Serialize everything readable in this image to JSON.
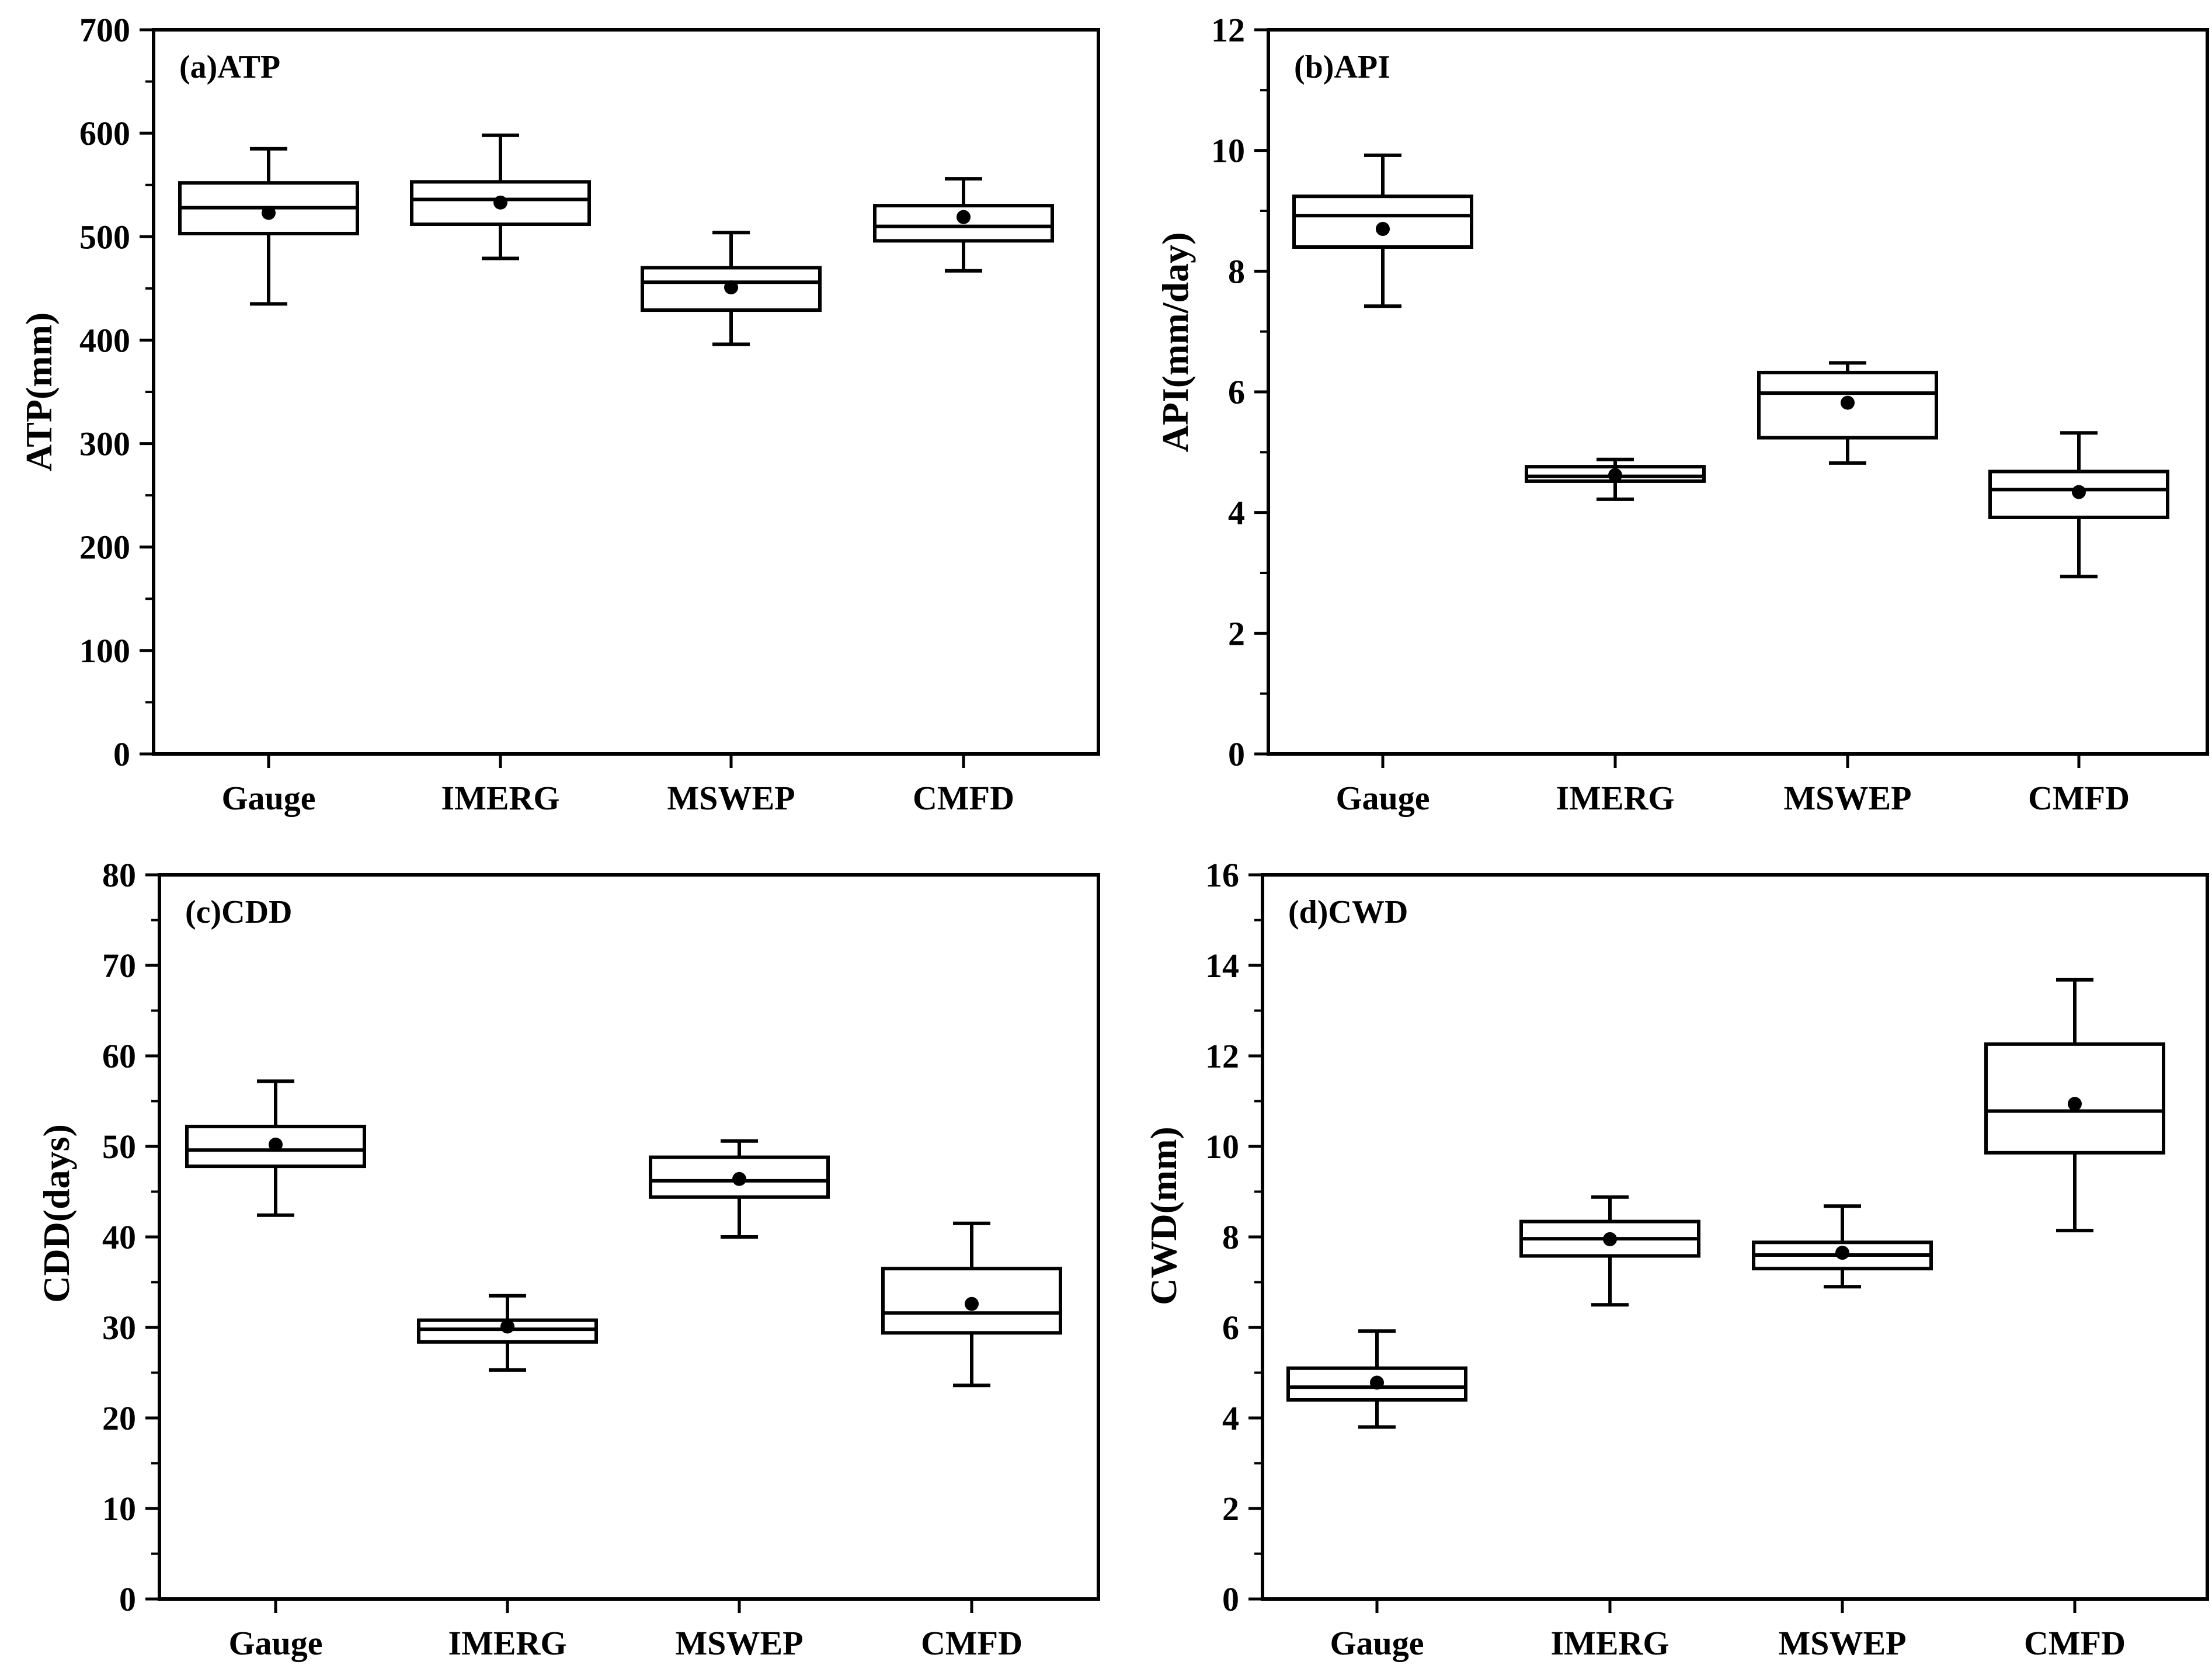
{
  "figure": {
    "categories": [
      "Gauge",
      "IMERG",
      "MSWEP",
      "CMFD"
    ]
  },
  "chart_data": [
    {
      "type": "box",
      "panel": "(a)ATP",
      "ylabel": "ATP(mm)",
      "ylim": [
        0,
        700
      ],
      "yticks": [
        0,
        100,
        200,
        300,
        400,
        500,
        600,
        700
      ],
      "minor_step": 50,
      "categories": [
        "Gauge",
        "IMERG",
        "MSWEP",
        "CMFD"
      ],
      "boxes": [
        {
          "min": 435,
          "q1": 503,
          "median": 528,
          "q3": 552,
          "max": 585,
          "mean": 523
        },
        {
          "min": 479,
          "q1": 512,
          "median": 536,
          "q3": 553,
          "max": 598,
          "mean": 533
        },
        {
          "min": 396,
          "q1": 429,
          "median": 456,
          "q3": 470,
          "max": 504,
          "mean": 451
        },
        {
          "min": 467,
          "q1": 496,
          "median": 510,
          "q3": 530,
          "max": 556,
          "mean": 519
        }
      ]
    },
    {
      "type": "box",
      "panel": "(b)API",
      "ylabel": "API(mm/day)",
      "ylim": [
        0,
        12
      ],
      "yticks": [
        0,
        2,
        4,
        6,
        8,
        10,
        12
      ],
      "minor_step": 1,
      "categories": [
        "Gauge",
        "IMERG",
        "MSWEP",
        "CMFD"
      ],
      "boxes": [
        {
          "min": 7.42,
          "q1": 8.4,
          "median": 8.92,
          "q3": 9.24,
          "max": 9.92,
          "mean": 8.7
        },
        {
          "min": 4.22,
          "q1": 4.52,
          "median": 4.6,
          "q3": 4.76,
          "max": 4.88,
          "mean": 4.62
        },
        {
          "min": 4.82,
          "q1": 5.24,
          "median": 5.98,
          "q3": 6.32,
          "max": 6.48,
          "mean": 5.82
        },
        {
          "min": 2.94,
          "q1": 3.92,
          "median": 4.38,
          "q3": 4.68,
          "max": 5.32,
          "mean": 4.34
        }
      ]
    },
    {
      "type": "box",
      "panel": "(c)CDD",
      "ylabel": "CDD(days)",
      "ylim": [
        0,
        80
      ],
      "yticks": [
        0,
        10,
        20,
        30,
        40,
        50,
        60,
        70,
        80
      ],
      "minor_step": 5,
      "categories": [
        "Gauge",
        "IMERG",
        "MSWEP",
        "CMFD"
      ],
      "boxes": [
        {
          "min": 42.4,
          "q1": 47.8,
          "median": 49.6,
          "q3": 52.2,
          "max": 57.2,
          "mean": 50.2
        },
        {
          "min": 25.3,
          "q1": 28.4,
          "median": 29.8,
          "q3": 30.8,
          "max": 33.5,
          "mean": 30.1
        },
        {
          "min": 40.0,
          "q1": 44.4,
          "median": 46.2,
          "q3": 48.8,
          "max": 50.6,
          "mean": 46.4
        },
        {
          "min": 23.6,
          "q1": 29.4,
          "median": 31.6,
          "q3": 36.5,
          "max": 41.5,
          "mean": 32.6
        }
      ]
    },
    {
      "type": "box",
      "panel": "(d)CWD",
      "ylabel": "CWD(mm)",
      "ylim": [
        0,
        16
      ],
      "yticks": [
        0,
        2,
        4,
        6,
        8,
        10,
        12,
        14,
        16
      ],
      "minor_step": 1,
      "categories": [
        "Gauge",
        "IMERG",
        "MSWEP",
        "CMFD"
      ],
      "boxes": [
        {
          "min": 3.8,
          "q1": 4.4,
          "median": 4.68,
          "q3": 5.1,
          "max": 5.92,
          "mean": 4.78
        },
        {
          "min": 6.5,
          "q1": 7.58,
          "median": 7.96,
          "q3": 8.34,
          "max": 8.88,
          "mean": 7.95
        },
        {
          "min": 6.9,
          "q1": 7.3,
          "median": 7.6,
          "q3": 7.88,
          "max": 8.68,
          "mean": 7.65
        },
        {
          "min": 8.14,
          "q1": 9.86,
          "median": 10.78,
          "q3": 12.26,
          "max": 13.68,
          "mean": 10.94
        }
      ]
    }
  ]
}
